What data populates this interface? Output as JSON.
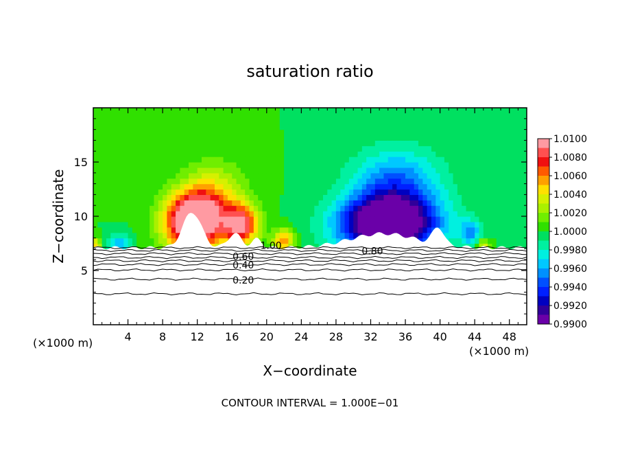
{
  "chart_data": {
    "type": "heatmap",
    "title": "saturation ratio",
    "xlabel": "X−coordinate",
    "ylabel": "Z−coordinate",
    "x_unit_left": "(×1000 m)",
    "x_unit_right": "(×1000 m)",
    "footer": "CONTOUR INTERVAL = 1.000E−01",
    "xlim": [
      0,
      50
    ],
    "ylim": [
      0,
      20
    ],
    "x_ticks": [
      4,
      8,
      12,
      16,
      20,
      24,
      28,
      32,
      36,
      40,
      44,
      48
    ],
    "x_tick_labels": [
      "4",
      "8",
      "12",
      "16",
      "20",
      "24",
      "28",
      "32",
      "36",
      "40",
      "44",
      "48"
    ],
    "y_ticks": [
      5,
      10,
      15
    ],
    "y_tick_labels": [
      "5",
      "10",
      "15"
    ],
    "colorbar": {
      "levels": [
        "1.0100",
        "1.0080",
        "1.0060",
        "1.0040",
        "1.0020",
        "1.0000",
        "0.9980",
        "0.9960",
        "0.9940",
        "0.9920",
        "0.9900"
      ],
      "colors": [
        "#ff9aa2",
        "#ff5050",
        "#f01010",
        "#ff5a00",
        "#ffa000",
        "#ffe000",
        "#d6f000",
        "#aaf000",
        "#70ee00",
        "#30e000",
        "#00e060",
        "#00f0a0",
        "#00f0e0",
        "#00c8ff",
        "#0090ff",
        "#0050ff",
        "#0020ff",
        "#0000c0",
        "#30009a",
        "#6a00a8"
      ]
    },
    "contour_labels": [
      {
        "text": "1.00",
        "x": 20.5,
        "y": 7.3
      },
      {
        "text": "0.80",
        "x": 32.2,
        "y": 6.8
      },
      {
        "text": "0.60",
        "x": 17.3,
        "y": 6.3
      },
      {
        "text": "0.40",
        "x": 17.3,
        "y": 5.5
      },
      {
        "text": "0.20",
        "x": 17.3,
        "y": 4.1
      }
    ],
    "contour_lines_y": [
      7.1,
      6.85,
      6.55,
      6.2,
      5.9,
      5.55,
      5.05,
      4.2,
      2.85
    ],
    "base_value": 1.0,
    "features": [
      {
        "x": 11.5,
        "y": 9.5,
        "sx": 3.2,
        "sy": 2.6,
        "a": 0.013
      },
      {
        "x": 17.0,
        "y": 9.2,
        "sx": 2.0,
        "sy": 1.8,
        "a": 0.009
      },
      {
        "x": 14.0,
        "y": 11.8,
        "sx": 3.5,
        "sy": 3.0,
        "a": 0.004
      },
      {
        "x": 22.0,
        "y": 7.8,
        "sx": 1.2,
        "sy": 1.0,
        "a": 0.006
      },
      {
        "x": 34.0,
        "y": 9.2,
        "sx": 5.5,
        "sy": 2.6,
        "a": -0.0135
      },
      {
        "x": 35.0,
        "y": 13.0,
        "sx": 5.0,
        "sy": 3.2,
        "a": -0.005
      },
      {
        "x": 3.0,
        "y": 7.6,
        "sx": 1.2,
        "sy": 0.8,
        "a": -0.004
      },
      {
        "x": 0.3,
        "y": 7.4,
        "sx": 0.6,
        "sy": 0.6,
        "a": 0.005
      },
      {
        "x": 45.0,
        "y": 7.4,
        "sx": 0.8,
        "sy": 0.5,
        "a": 0.004
      },
      {
        "x": 43.5,
        "y": 8.5,
        "sx": 1.2,
        "sy": 1.2,
        "a": -0.004
      }
    ]
  }
}
